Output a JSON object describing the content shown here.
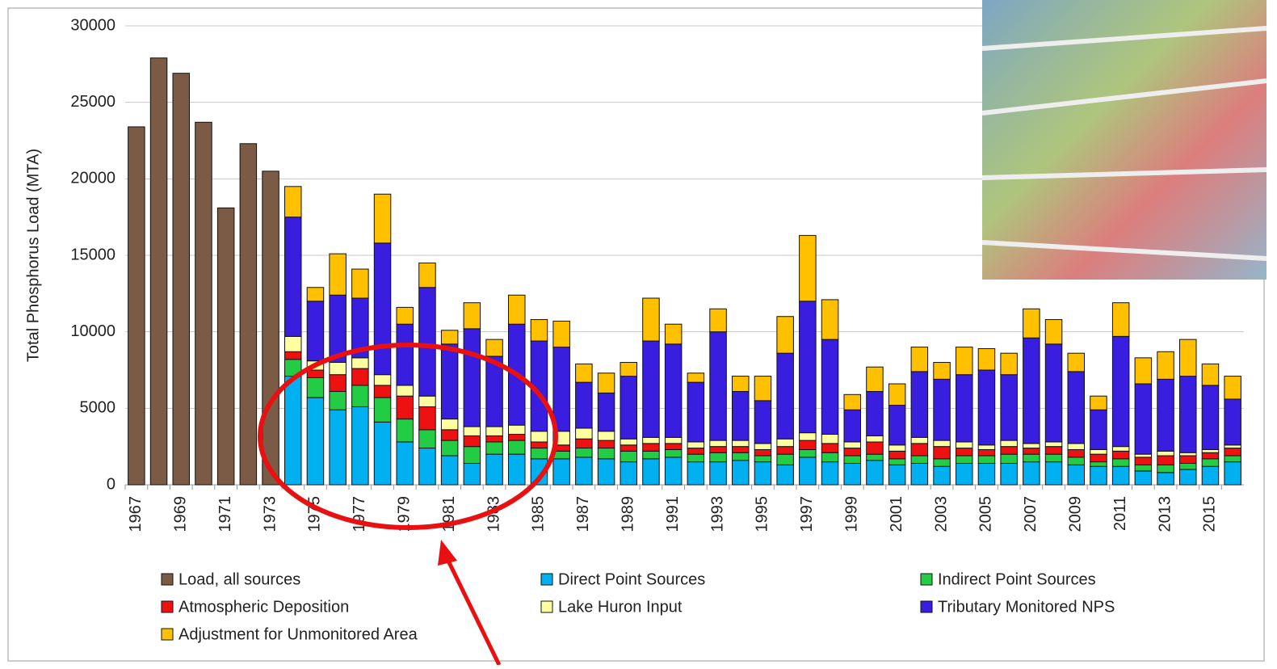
{
  "chart_data": {
    "type": "bar",
    "stacked": true,
    "ylabel": "Total Phosphorus Load (MTA)",
    "categories": [
      "1967",
      null,
      "1969",
      null,
      "1971",
      null,
      "1973",
      null,
      "1975",
      null,
      "1977",
      null,
      "1979",
      null,
      "1981",
      null,
      "1983",
      null,
      "1985",
      null,
      "1987",
      null,
      "1989",
      null,
      "1991",
      null,
      "1993",
      null,
      "1995",
      null,
      "1997",
      null,
      "1999",
      null,
      "2001",
      null,
      "2003",
      null,
      "2005",
      null,
      "2007",
      null,
      "2009",
      null,
      "2011",
      null,
      "2013",
      null,
      "2015",
      null
    ],
    "series": [
      {
        "name": "Load, all sources",
        "color": "#7b5b45",
        "values": [
          23400,
          27900,
          26900,
          23700,
          18100,
          22300,
          20500,
          null,
          null,
          null,
          null,
          null,
          null,
          null,
          null,
          null,
          null,
          null,
          null,
          null,
          null,
          null,
          null,
          null,
          null,
          null,
          null,
          null,
          null,
          null,
          null,
          null,
          null,
          null,
          null,
          null,
          null,
          null,
          null,
          null,
          null,
          null,
          null,
          null,
          null,
          null,
          null,
          null,
          null,
          null
        ]
      },
      {
        "name": "Direct Point Sources",
        "color": "#00b0f0",
        "values": [
          null,
          null,
          null,
          null,
          null,
          null,
          null,
          7100,
          5700,
          4900,
          5100,
          4100,
          2800,
          2400,
          1900,
          1400,
          2000,
          2000,
          1700,
          1700,
          1800,
          1700,
          1500,
          1700,
          1800,
          1500,
          1500,
          1600,
          1500,
          1300,
          1800,
          1500,
          1400,
          1600,
          1300,
          1400,
          1200,
          1400,
          1400,
          1400,
          1500,
          1500,
          1300,
          1200,
          1200,
          900,
          800,
          1000,
          1200,
          1500
        ]
      },
      {
        "name": "Indirect Point Sources",
        "color": "#22cc44",
        "values": [
          null,
          null,
          null,
          null,
          null,
          null,
          null,
          1100,
          1300,
          1200,
          1400,
          1600,
          1500,
          1200,
          1000,
          1100,
          800,
          900,
          700,
          500,
          600,
          700,
          700,
          500,
          500,
          500,
          600,
          500,
          400,
          700,
          500,
          600,
          500,
          400,
          400,
          500,
          500,
          500,
          500,
          600,
          500,
          500,
          500,
          300,
          500,
          400,
          500,
          400,
          500,
          400
        ]
      },
      {
        "name": "Atmospheric Deposition",
        "color": "#ee1111",
        "values": [
          null,
          null,
          null,
          null,
          null,
          null,
          null,
          500,
          500,
          1100,
          1100,
          800,
          1500,
          1500,
          700,
          700,
          400,
          400,
          400,
          400,
          600,
          500,
          400,
          500,
          400,
          400,
          400,
          400,
          400,
          500,
          600,
          600,
          500,
          800,
          500,
          800,
          800,
          500,
          400,
          500,
          400,
          500,
          500,
          500,
          500,
          500,
          600,
          500,
          400,
          500
        ]
      },
      {
        "name": "Lake Huron Input",
        "color": "#ffffa0",
        "values": [
          null,
          null,
          null,
          null,
          null,
          null,
          null,
          1000,
          600,
          800,
          700,
          700,
          700,
          700,
          700,
          600,
          600,
          600,
          700,
          900,
          700,
          600,
          400,
          400,
          400,
          400,
          400,
          400,
          400,
          500,
          500,
          600,
          400,
          400,
          400,
          400,
          400,
          400,
          300,
          400,
          300,
          300,
          400,
          300,
          300,
          200,
          300,
          200,
          200,
          200
        ]
      },
      {
        "name": "Tributary Monitored NPS",
        "color": "#3a1ee0",
        "values": [
          null,
          null,
          null,
          null,
          null,
          null,
          null,
          7800,
          3900,
          4400,
          3900,
          8600,
          4000,
          7100,
          4900,
          6400,
          4600,
          6600,
          5900,
          5500,
          3000,
          2500,
          4100,
          6300,
          6100,
          3900,
          7100,
          3200,
          2800,
          5600,
          8600,
          6200,
          2100,
          2900,
          2600,
          4300,
          4000,
          4400,
          4900,
          4300,
          6900,
          6400,
          4700,
          2600,
          7200,
          4600,
          4700,
          5000,
          4200,
          3000
        ]
      },
      {
        "name": "Adjustment for Unmonitored Area",
        "color": "#ffc000",
        "values": [
          null,
          null,
          null,
          null,
          null,
          null,
          null,
          2000,
          900,
          2700,
          1900,
          3200,
          1100,
          1600,
          900,
          1700,
          1100,
          1900,
          1400,
          1700,
          1200,
          1300,
          900,
          2800,
          1300,
          600,
          1500,
          1000,
          1600,
          2400,
          4300,
          2600,
          1000,
          1600,
          1400,
          1600,
          1100,
          1800,
          1400,
          1400,
          1900,
          1600,
          1200,
          900,
          2200,
          1700,
          1800,
          2400,
          1400,
          1500
        ]
      }
    ],
    "ylim": [
      0,
      30000
    ],
    "yticks": [
      0,
      5000,
      10000,
      15000,
      20000,
      25000,
      30000
    ],
    "grid": true,
    "legend": "bottom"
  }
}
